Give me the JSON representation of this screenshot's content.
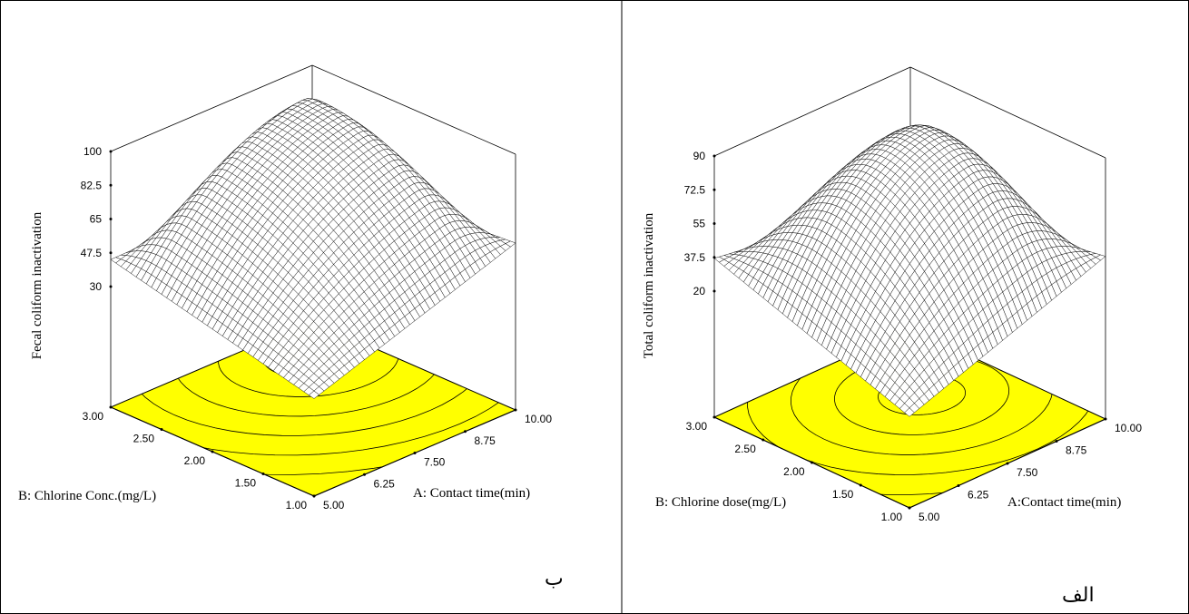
{
  "panels": [
    {
      "panel_letter": "ب",
      "chart_data": {
        "type": "surface3d",
        "zlabel": "Fecal coliform inactivation",
        "xlabel": "A: Contact time(min)",
        "ylabel": "B: Chlorine Conc.(mg/L)",
        "x_ticks": [
          "5.00",
          "6.25",
          "7.50",
          "8.75",
          "10.00"
        ],
        "y_ticks": [
          "1.00",
          "1.50",
          "2.00",
          "2.50",
          "3.00"
        ],
        "z_ticks": [
          "30",
          "47.5",
          "65",
          "82.5",
          "100"
        ],
        "xlim": [
          5,
          10
        ],
        "ylim": [
          1,
          3
        ],
        "zlim": [
          30,
          100
        ],
        "surface": {
          "corners": {
            "x5_y1": 18,
            "x5_y3": 44,
            "x10_y1": 54,
            "x10_y3": 46
          },
          "peak": {
            "x": 8.9,
            "y": 2.6,
            "z": 101
          }
        },
        "floor_color": "#ffff00",
        "contour_count": 6
      }
    },
    {
      "panel_letter": "الف",
      "chart_data": {
        "type": "surface3d",
        "zlabel": "Total coliform inactivation",
        "xlabel": "A:Contact time(min)",
        "ylabel": "B: Chlorine dose(mg/L)",
        "x_ticks": [
          "5.00",
          "6.25",
          "7.50",
          "8.75",
          "10.00"
        ],
        "y_ticks": [
          "1.00",
          "1.50",
          "2.00",
          "2.50",
          "3.00"
        ],
        "z_ticks": [
          "20",
          "37.5",
          "55",
          "72.5",
          "90"
        ],
        "xlim": [
          5,
          10
        ],
        "ylim": [
          1,
          3
        ],
        "zlim": [
          20,
          90
        ],
        "surface": {
          "corners": {
            "x5_y1": 2,
            "x5_y3": 37,
            "x10_y1": 39,
            "x10_y3": 22
          },
          "peak": {
            "x": 8.3,
            "y": 2.2,
            "z": 92
          }
        },
        "floor_color": "#ffff00",
        "contour_count": 6
      }
    }
  ]
}
